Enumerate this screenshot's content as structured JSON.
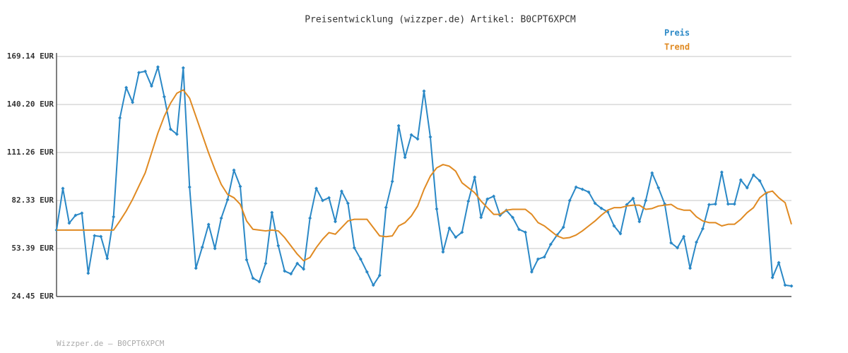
{
  "chart_data": {
    "type": "line",
    "title": "Preisentwicklung (wizzper.de) Artikel: B0CPT6XPCM",
    "footer": "Wizzper.de – B0CPT6XPCM",
    "ylim": [
      24.45,
      169.14
    ],
    "yticks": [
      {
        "value": 24.45,
        "label": "24.45 EUR"
      },
      {
        "value": 53.39,
        "label": "53.39 EUR"
      },
      {
        "value": 82.33,
        "label": "82.33 EUR"
      },
      {
        "value": 111.26,
        "label": "111.26 EUR"
      },
      {
        "value": 140.2,
        "label": "140.20 EUR"
      },
      {
        "value": 169.14,
        "label": "169.14 EUR"
      }
    ],
    "grid": true,
    "legend": "top-right",
    "series": [
      {
        "name": "Preis",
        "color": "#2a88c6",
        "markers": true,
        "values": [
          64.5,
          89.6,
          68.7,
          73.4,
          74.7,
          38.5,
          61.1,
          60.6,
          47.4,
          72.5,
          132.1,
          150.4,
          141.5,
          159.4,
          160.2,
          151.3,
          162.8,
          144.9,
          125.3,
          122.3,
          162.3,
          90.4,
          41.5,
          54.2,
          67.9,
          53.4,
          71.7,
          82.8,
          100.6,
          90.8,
          46.6,
          35.5,
          33.4,
          44.4,
          75.1,
          55.1,
          39.8,
          38.1,
          44.4,
          41.0,
          71.7,
          89.6,
          82.3,
          84.0,
          69.6,
          87.9,
          80.6,
          53.8,
          47.0,
          39.3,
          31.3,
          37.2,
          78.1,
          93.8,
          127.4,
          108.3,
          121.9,
          119.4,
          148.3,
          120.6,
          77.2,
          51.3,
          65.7,
          60.2,
          63.2,
          81.9,
          96.4,
          72.1,
          83.2,
          84.9,
          73.4,
          76.4,
          72.1,
          64.9,
          63.2,
          39.3,
          47.0,
          48.3,
          55.9,
          61.5,
          66.2,
          82.3,
          90.4,
          89.1,
          87.4,
          80.6,
          77.6,
          75.5,
          67.0,
          62.3,
          79.8,
          83.6,
          69.6,
          82.3,
          98.9,
          90.0,
          80.2,
          56.8,
          53.8,
          60.6,
          41.5,
          57.2,
          65.3,
          79.8,
          80.2,
          99.4,
          80.2,
          80.2,
          94.7,
          90.0,
          97.7,
          94.2,
          86.6,
          35.9,
          44.9,
          31.3,
          30.8
        ]
      },
      {
        "name": "Trend",
        "color": "#e08a22",
        "markers": false,
        "values": [
          64.5,
          64.5,
          64.5,
          64.5,
          64.5,
          64.5,
          64.5,
          64.5,
          64.5,
          64.5,
          70,
          76,
          83,
          91,
          99,
          111,
          123,
          133,
          141,
          147,
          149,
          144,
          133,
          122,
          111,
          101,
          92,
          86,
          84,
          80,
          70,
          65,
          64.5,
          64,
          64.5,
          64,
          60,
          55,
          50,
          46,
          48,
          54,
          59,
          63,
          62,
          66,
          70,
          71,
          71,
          71,
          66,
          61,
          60.5,
          61,
          67,
          69,
          73,
          79,
          89,
          97,
          102,
          104,
          103,
          100,
          93,
          90,
          87,
          82,
          78,
          74,
          74,
          76.5,
          77,
          77,
          77,
          74,
          69,
          67,
          64,
          61,
          59.5,
          60,
          61.5,
          64,
          67,
          70,
          73.5,
          76.5,
          78,
          78,
          79,
          79.5,
          79.5,
          77,
          77.5,
          79,
          79.5,
          80,
          77.5,
          76.5,
          76.5,
          72.5,
          70,
          69,
          69,
          67,
          68,
          68,
          71,
          75,
          78,
          84,
          87,
          88,
          84,
          81,
          68
        ]
      }
    ]
  }
}
